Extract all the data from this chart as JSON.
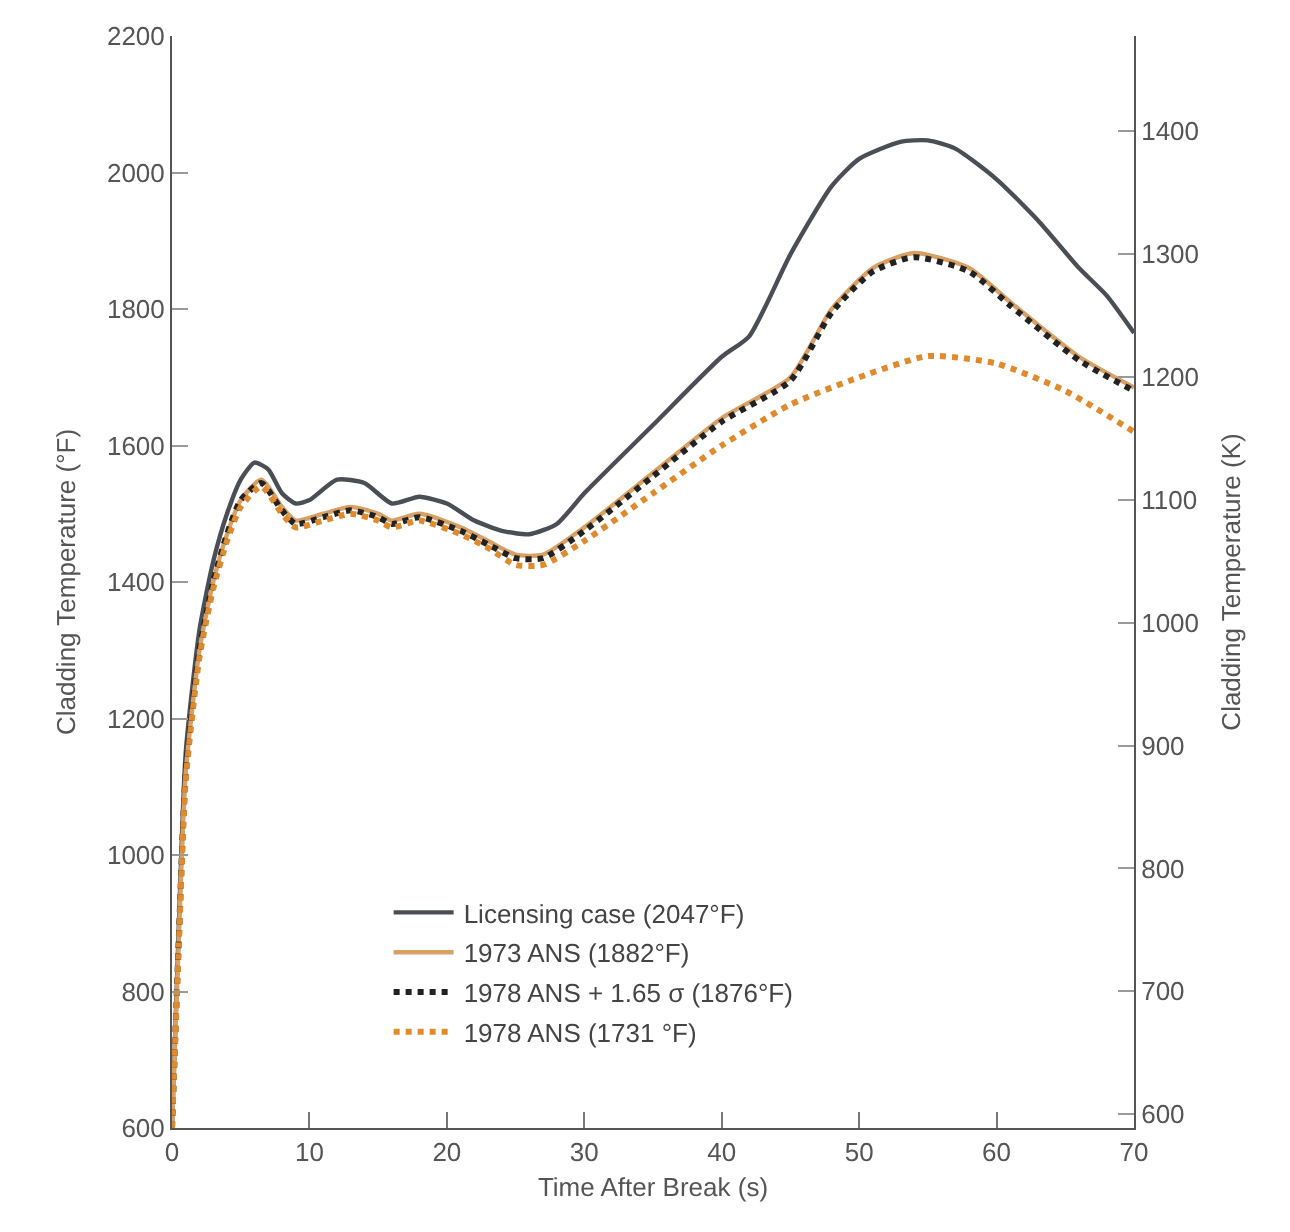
{
  "chart_data": {
    "type": "line",
    "xlabel": "Time After Break (s)",
    "ylabel": "Cladding Temperature (°F)",
    "y2label": "Cladding Temperature (K)",
    "xlim": [
      0,
      70
    ],
    "xticks": [
      0,
      10,
      20,
      30,
      40,
      50,
      60,
      70
    ],
    "ylim": [
      600,
      2200
    ],
    "yticks": [
      600,
      800,
      1000,
      1200,
      1400,
      1600,
      1800,
      2000,
      2200
    ],
    "y2lim": [
      588.7,
      1477.6
    ],
    "y2ticks": [
      600,
      700,
      800,
      900,
      1000,
      1100,
      1200,
      1300,
      1400
    ],
    "grid": false,
    "legend": "bottom",
    "marker": "none",
    "series": [
      {
        "name": "Licensing case (2047°F)",
        "color": "#4a4f55",
        "line_style": "solid",
        "x": [
          0,
          0.5,
          1,
          2,
          3,
          4,
          5,
          6,
          7,
          8,
          9,
          10,
          12,
          14,
          16,
          18,
          20,
          22,
          24,
          26,
          28,
          30,
          35,
          40,
          42,
          45,
          48,
          50,
          53,
          55,
          57,
          60,
          63,
          66,
          68,
          70
        ],
        "values": [
          600,
          900,
          1150,
          1330,
          1430,
          1500,
          1550,
          1575,
          1565,
          1530,
          1515,
          1520,
          1550,
          1545,
          1515,
          1525,
          1515,
          1490,
          1475,
          1470,
          1485,
          1530,
          1630,
          1730,
          1760,
          1880,
          1980,
          2020,
          2045,
          2047,
          2035,
          1990,
          1930,
          1860,
          1820,
          1765
        ]
      },
      {
        "name": "1973 ANS (1882°F)",
        "color": "#d9a066",
        "line_style": "solid",
        "x": [
          0,
          0.5,
          1,
          2,
          3,
          4,
          5,
          6.5,
          8,
          9,
          11,
          13,
          15,
          16,
          18,
          21,
          23,
          25,
          27,
          30,
          35,
          40,
          45,
          48,
          51,
          54,
          58,
          61,
          66,
          70
        ],
        "values": [
          600,
          880,
          1120,
          1300,
          1400,
          1470,
          1520,
          1550,
          1510,
          1490,
          1500,
          1510,
          1500,
          1490,
          1500,
          1480,
          1460,
          1440,
          1440,
          1480,
          1560,
          1640,
          1700,
          1800,
          1860,
          1882,
          1860,
          1810,
          1730,
          1685
        ]
      },
      {
        "name": "1978 ANS + 1.65 σ (1876°F)",
        "color": "#222222",
        "line_style": "dotted",
        "x": [
          0,
          0.5,
          1,
          2,
          3,
          4,
          5,
          6.5,
          8,
          9,
          11,
          13,
          15,
          16,
          18,
          21,
          23,
          25,
          27,
          30,
          35,
          40,
          45,
          48,
          51,
          54,
          58,
          61,
          66,
          70
        ],
        "values": [
          600,
          880,
          1120,
          1300,
          1400,
          1470,
          1520,
          1545,
          1505,
          1485,
          1495,
          1505,
          1495,
          1485,
          1495,
          1475,
          1455,
          1435,
          1435,
          1475,
          1555,
          1635,
          1695,
          1795,
          1855,
          1876,
          1855,
          1805,
          1725,
          1680
        ]
      },
      {
        "name": "1978 ANS (1731 °F)",
        "color": "#e08a2e",
        "line_style": "dotted",
        "x": [
          0,
          0.5,
          1,
          2,
          3,
          4,
          5,
          6.5,
          8,
          9,
          11,
          13,
          15,
          16,
          18,
          21,
          23,
          25,
          27,
          30,
          35,
          40,
          45,
          50,
          55,
          60,
          65,
          70
        ],
        "values": [
          600,
          870,
          1110,
          1290,
          1390,
          1460,
          1510,
          1540,
          1500,
          1480,
          1490,
          1500,
          1490,
          1480,
          1490,
          1470,
          1450,
          1425,
          1425,
          1460,
          1530,
          1600,
          1660,
          1700,
          1731,
          1720,
          1680,
          1620
        ]
      }
    ]
  }
}
